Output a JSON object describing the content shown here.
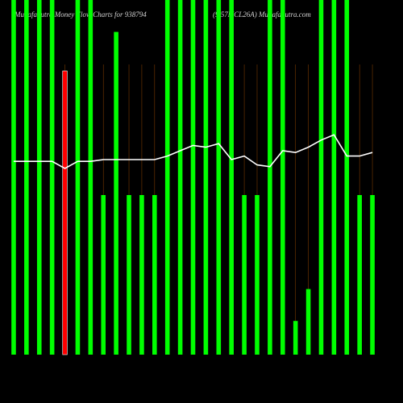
{
  "chart_data": {
    "type": "bar",
    "title": "MunafaSutra Money Flow Charts for 938794",
    "subtitle": "(9.57MCL26A) MunafaSutra.com",
    "categories": [
      null,
      null,
      null,
      null,
      null,
      null,
      null,
      null,
      null,
      null,
      null,
      null,
      null,
      null,
      null,
      null,
      null,
      null,
      null,
      null,
      null,
      null,
      null,
      null,
      null,
      null,
      null,
      null,
      null
    ],
    "series": [
      {
        "color": "#00ff00",
        "values": [
          100,
          100,
          100,
          100,
          80,
          100,
          100,
          45,
          91,
          45,
          45,
          45,
          100,
          100,
          100,
          100,
          100,
          100,
          45,
          45,
          100,
          100,
          9.5,
          18.5,
          100,
          100,
          100,
          45,
          45
        ],
        "colors": [
          "#00ff00",
          "#00ff00",
          "#00ff00",
          "#00ff00",
          "#ff0000",
          "#00ff00",
          "#00ff00",
          "#00ff00",
          "#00ff00",
          "#00ff00",
          "#00ff00",
          "#00ff00",
          "#00ff00",
          "#00ff00",
          "#00ff00",
          "#00ff00",
          "#00ff00",
          "#00ff00",
          "#00ff00",
          "#00ff00",
          "#00ff00",
          "#00ff00",
          "#00ff00",
          "#00ff00",
          "#00ff00",
          "#00ff00",
          "#00ff00",
          "#00ff00",
          "#00ff00"
        ]
      },
      {
        "type": "line",
        "color": "#ffffff",
        "values": [
          54.5,
          54.5,
          54.5,
          54.5,
          52.5,
          54.5,
          54.5,
          55,
          55,
          55,
          55,
          55,
          56,
          57.5,
          59,
          58.5,
          59.5,
          55,
          56,
          53.5,
          53,
          57.5,
          57,
          58.5,
          60.5,
          62,
          56,
          56,
          57
        ]
      }
    ],
    "ylim": [
      0,
      100
    ]
  }
}
